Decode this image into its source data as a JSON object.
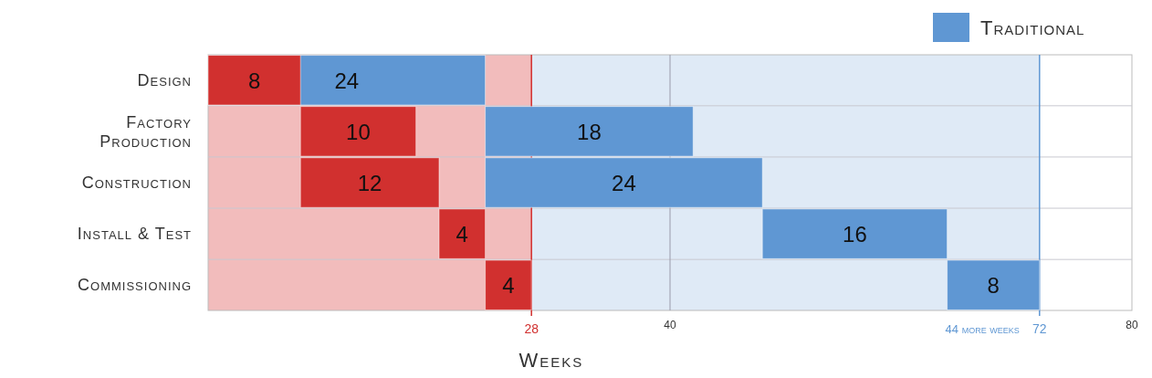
{
  "chart_data": {
    "type": "bar",
    "orientation": "horizontal",
    "xlabel": "Weeks",
    "categories": [
      "Design",
      "Factory Production",
      "Construction",
      "Install & Test",
      "Commissioning"
    ],
    "series": [
      {
        "color": "#d1302f",
        "values": [
          8,
          10,
          12,
          4,
          4
        ],
        "base": [
          0,
          8,
          8,
          20,
          24
        ]
      },
      {
        "name": "Traditional",
        "color": "#5f97d3",
        "values": [
          24,
          18,
          24,
          16,
          8
        ],
        "base": [
          0,
          24,
          24,
          48,
          64
        ]
      }
    ],
    "data_labels": true,
    "xlim": [
      0,
      80
    ],
    "xticks": [
      40,
      80
    ],
    "legend": "top right",
    "bands": [
      {
        "axis": "x",
        "from": 0,
        "to": 28,
        "color": "#f2bcbc"
      },
      {
        "axis": "x",
        "from": 28,
        "to": 72,
        "color": "#dfeaf6"
      }
    ],
    "ref_lines": [
      {
        "axis": "x",
        "value": 40,
        "color": "#9a9aaa"
      },
      {
        "axis": "x",
        "value": 28,
        "label": "28",
        "color": "#d1302f"
      },
      {
        "axis": "x",
        "value": 72,
        "label": "72",
        "color": "#5f97d3"
      }
    ],
    "annotations": [
      "44 more weeks"
    ]
  }
}
